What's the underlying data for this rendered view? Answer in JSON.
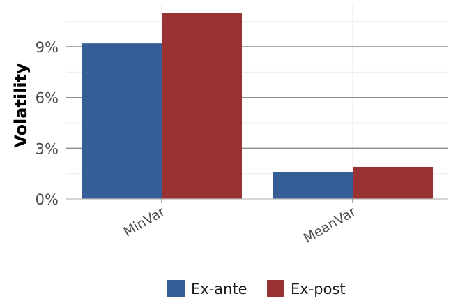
{
  "chart_data": {
    "type": "bar",
    "categories": [
      "MinVar",
      "MeanVar"
    ],
    "series": [
      {
        "name": "Ex-ante",
        "values": [
          9.2,
          1.6
        ],
        "color": "#355e96"
      },
      {
        "name": "Ex-post",
        "values": [
          11.0,
          1.9
        ],
        "color": "#993333"
      }
    ],
    "ylabel": "Volatility",
    "yticks": [
      0,
      3,
      6,
      9
    ],
    "ytick_labels": [
      "0%",
      "3%",
      "6%",
      "9%"
    ],
    "ylim": [
      0,
      11
    ],
    "legend_position": "bottom",
    "grid": true
  }
}
